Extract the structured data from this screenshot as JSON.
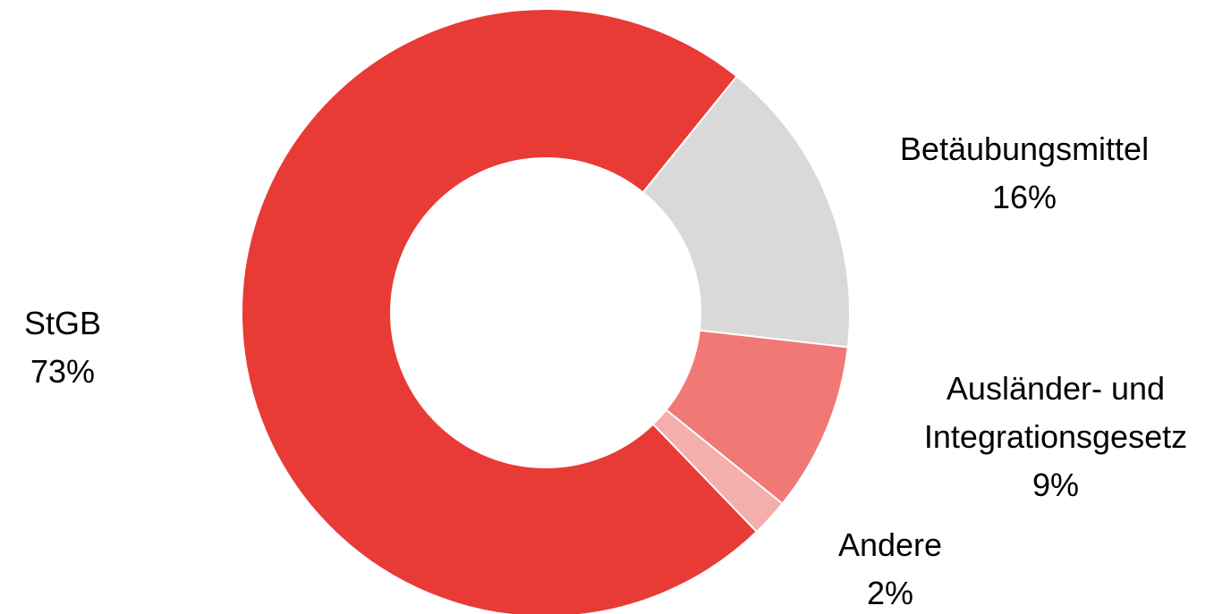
{
  "chart_data": {
    "type": "donut",
    "categories": [
      "Betäubungsmittel",
      "Ausländer- und Integrationsgesetz",
      "Andere",
      "StGB"
    ],
    "values": [
      16,
      9,
      2,
      73
    ],
    "value_labels": [
      "16%",
      "9%",
      "2%",
      "73%"
    ],
    "colors": [
      "#d9d9d9",
      "#f07875",
      "#f4aeac",
      "#e83b36"
    ]
  }
}
